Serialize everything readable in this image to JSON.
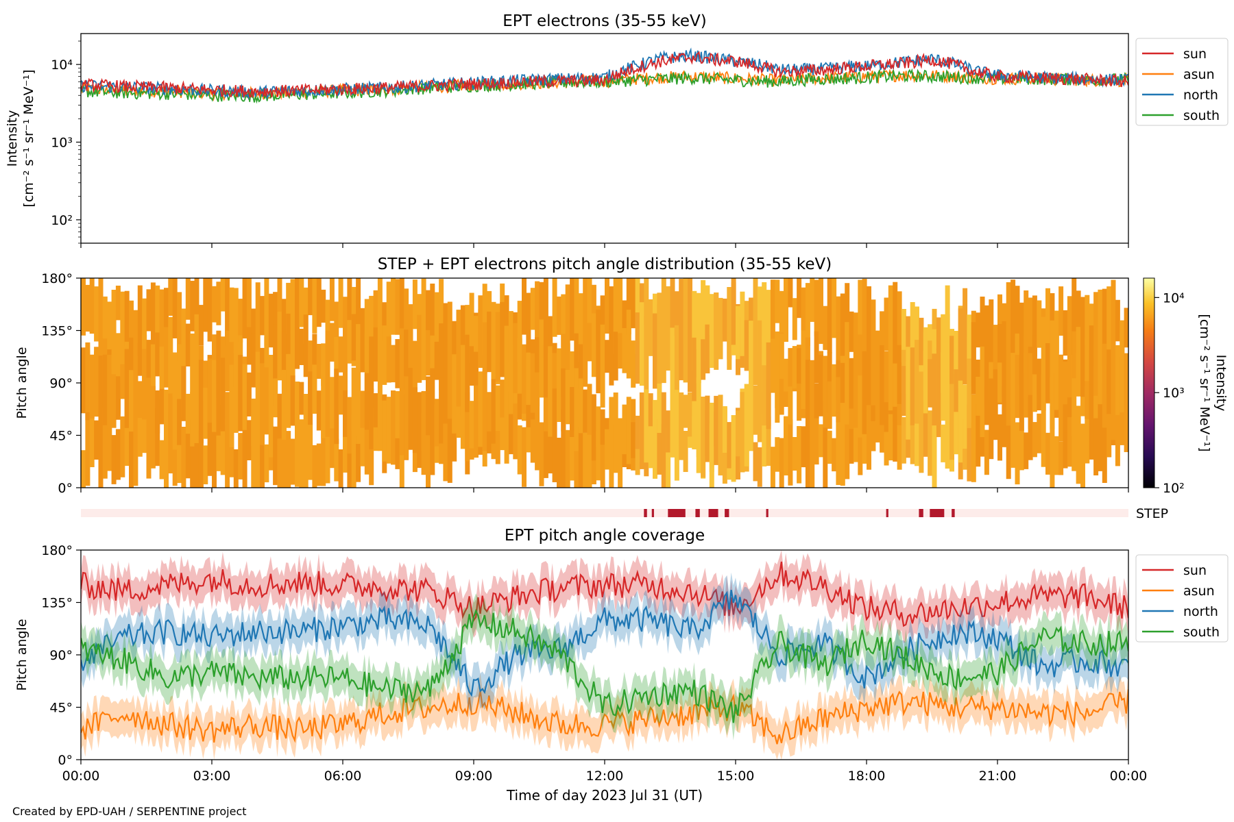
{
  "footer": "Created by EPD-UAH / SERPENTINE project",
  "colors": {
    "sun": "#d62728",
    "asun": "#ff7f0e",
    "north": "#1f77b4",
    "south": "#2ca02c",
    "step_mark": "#b2182b",
    "step_bg": "#fdecea"
  },
  "chart_data": [
    {
      "type": "line",
      "title": "EPT electrons (35-55 keV)",
      "xlabel": "",
      "ylabel": "Intensity",
      "ylabel_units": "[cm⁻² s⁻¹ sr⁻¹ MeV⁻¹]",
      "yscale": "log",
      "ylim": [
        50,
        25000
      ],
      "yticks": [
        "10²",
        "10³",
        "10⁴"
      ],
      "xlim_hours": [
        0,
        24
      ],
      "legend": "outside-right",
      "x_hours": [
        0,
        1,
        2,
        3,
        4,
        5,
        6,
        7,
        8,
        9,
        10,
        11,
        12,
        12.7,
        13.3,
        14,
        14.5,
        15,
        15.5,
        16,
        16.5,
        17,
        17.5,
        18,
        18.5,
        19,
        19.5,
        20,
        20.5,
        21,
        22,
        23,
        24
      ],
      "series": [
        {
          "name": "sun",
          "values": [
            5500,
            5200,
            5000,
            4700,
            4500,
            4600,
            4800,
            5000,
            5300,
            5600,
            5900,
            6100,
            6300,
            9000,
            11000,
            12500,
            11500,
            11000,
            9500,
            8000,
            8300,
            8500,
            9000,
            9500,
            10000,
            10500,
            11500,
            10000,
            8000,
            7000,
            6700,
            6400,
            6000
          ]
        },
        {
          "name": "asun",
          "values": [
            4800,
            4600,
            4500,
            4300,
            4200,
            4400,
            4600,
            4800,
            5100,
            5400,
            5700,
            5900,
            6100,
            6500,
            6800,
            7000,
            6800,
            6600,
            6400,
            6200,
            6500,
            6700,
            6800,
            7000,
            7200,
            7300,
            7200,
            7000,
            6800,
            6600,
            6500,
            6300,
            6200
          ]
        },
        {
          "name": "north",
          "values": [
            5300,
            5100,
            4900,
            4600,
            4400,
            4600,
            4800,
            5000,
            5400,
            5800,
            6200,
            6500,
            6800,
            9500,
            12000,
            13000,
            12000,
            11000,
            10000,
            8500,
            8600,
            8800,
            9200,
            9600,
            10200,
            11000,
            11800,
            10200,
            8200,
            7200,
            6800,
            6500,
            6300
          ]
        },
        {
          "name": "south",
          "values": [
            4500,
            4300,
            4200,
            4000,
            3900,
            4100,
            4300,
            4600,
            5000,
            5300,
            5600,
            5900,
            6000,
            6300,
            6500,
            6700,
            6500,
            6300,
            6100,
            6000,
            6300,
            6500,
            6600,
            6800,
            7000,
            7100,
            7000,
            6900,
            6700,
            6600,
            6500,
            6400,
            6400
          ]
        }
      ]
    },
    {
      "type": "heatmap",
      "title": "STEP + EPT electrons pitch angle distribution (35-55 keV)",
      "ylabel": "Pitch angle",
      "yticks": [
        "0°",
        "45°",
        "90°",
        "135°",
        "180°"
      ],
      "ylim": [
        0,
        180
      ],
      "colorbar_label": "Intensity",
      "colorbar_units": "[cm⁻² s⁻¹ sr⁻¹ MeV⁻¹]",
      "colorbar_ticks": [
        "10²",
        "10³",
        "10⁴"
      ],
      "colorbar_scale": "log",
      "colorbar_range": [
        100,
        16000
      ],
      "colormap": "inferno",
      "step_label": "STEP",
      "step_intervals_hours": [
        [
          12.9,
          12.97
        ],
        [
          13.08,
          13.13
        ],
        [
          13.45,
          13.85
        ],
        [
          14.08,
          14.18
        ],
        [
          14.38,
          14.6
        ],
        [
          14.75,
          14.85
        ],
        [
          15.7,
          15.75
        ],
        [
          18.45,
          18.5
        ],
        [
          19.2,
          19.3
        ],
        [
          19.45,
          19.78
        ],
        [
          19.95,
          20.02
        ]
      ]
    },
    {
      "type": "line",
      "title": "EPT pitch angle coverage",
      "ylabel": "Pitch angle",
      "xlabel": "Time of day 2023 Jul 31 (UT)",
      "yticks": [
        "0°",
        "45°",
        "90°",
        "135°",
        "180°"
      ],
      "ylim": [
        0,
        180
      ],
      "xticks": [
        "00:00",
        "03:00",
        "06:00",
        "09:00",
        "12:00",
        "15:00",
        "18:00",
        "21:00",
        "00:00"
      ],
      "legend": "outside-right",
      "shaded_band_deg": 15,
      "x_hours": [
        0,
        1,
        2,
        3,
        4,
        5,
        6,
        7,
        8,
        9,
        10,
        11,
        12,
        13,
        14,
        15,
        16,
        17,
        18,
        19,
        20,
        21,
        22,
        23,
        24
      ],
      "series": [
        {
          "name": "sun",
          "values": [
            150,
            145,
            150,
            155,
            150,
            152,
            150,
            148,
            145,
            130,
            140,
            148,
            150,
            150,
            145,
            130,
            160,
            150,
            130,
            125,
            130,
            135,
            140,
            140,
            130
          ]
        },
        {
          "name": "asun",
          "values": [
            25,
            40,
            30,
            25,
            30,
            25,
            30,
            40,
            45,
            50,
            40,
            30,
            30,
            35,
            40,
            45,
            20,
            35,
            45,
            50,
            45,
            45,
            40,
            40,
            50
          ]
        },
        {
          "name": "north",
          "values": [
            85,
            105,
            110,
            105,
            110,
            110,
            115,
            120,
            115,
            60,
            90,
            95,
            120,
            120,
            110,
            140,
            90,
            100,
            70,
            95,
            110,
            105,
            80,
            85,
            80
          ]
        },
        {
          "name": "south",
          "values": [
            95,
            85,
            70,
            75,
            70,
            70,
            70,
            60,
            60,
            120,
            110,
            90,
            45,
            55,
            60,
            40,
            100,
            80,
            105,
            85,
            70,
            75,
            105,
            100,
            100
          ]
        }
      ]
    }
  ]
}
